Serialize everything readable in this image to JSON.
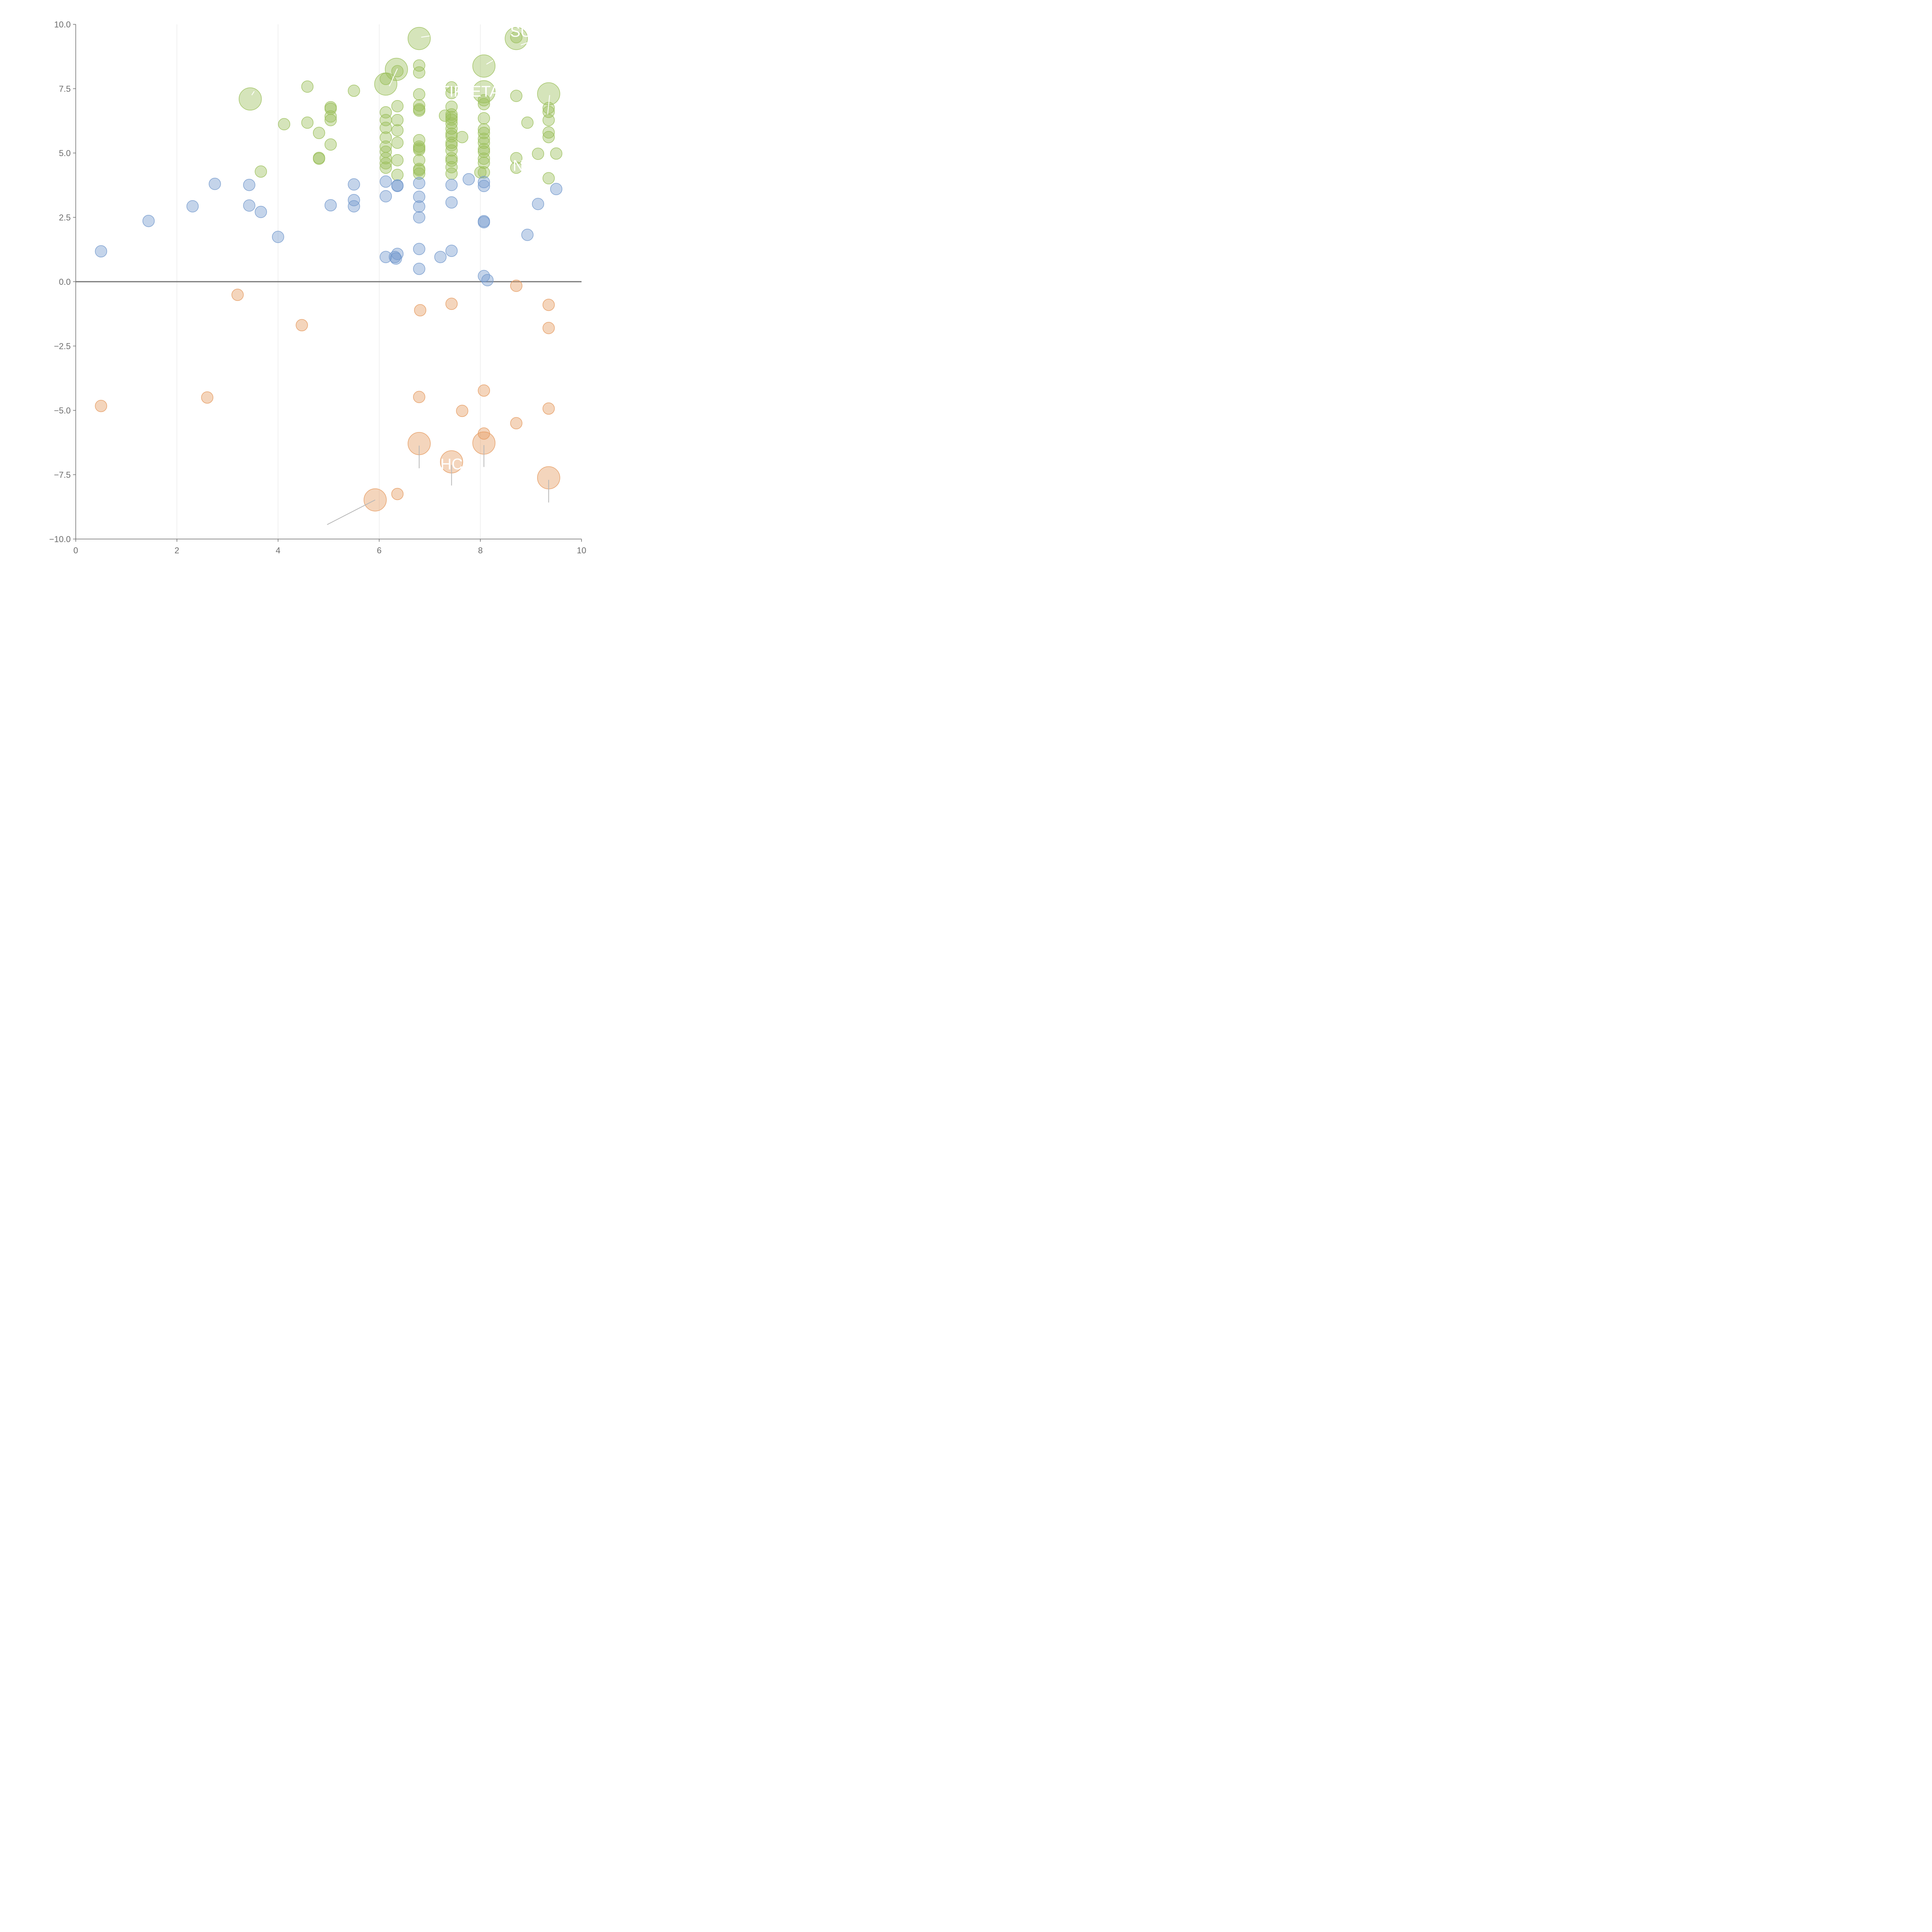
{
  "chart_data": {
    "type": "scatter",
    "title": "",
    "xlabel": "",
    "ylabel": "",
    "xlim": [
      0,
      10
    ],
    "ylim": [
      -10,
      10
    ],
    "x_ticks": [
      "0",
      "2",
      "4",
      "6",
      "8",
      "10"
    ],
    "y_ticks": [
      "−10.0",
      "−7.5",
      "−5.0",
      "−2.5",
      "0.0",
      "2.5",
      "5.0",
      "7.5",
      "10.0"
    ],
    "grid": "vertical",
    "zero_line": true,
    "colors": {
      "green": "#9bbf5b",
      "blue": "#7399cc",
      "orange": "#e59a5f",
      "axis": "#6e6e6e",
      "grid": "#e3e3e3"
    },
    "series": [
      {
        "color_key": "green",
        "points": [
          [
            3.45,
            7.1,
            3
          ],
          [
            3.66,
            4.28,
            1
          ],
          [
            4.12,
            6.12,
            1
          ],
          [
            4.58,
            7.58,
            1
          ],
          [
            4.58,
            6.18,
            1
          ],
          [
            4.81,
            5.78,
            1
          ],
          [
            4.81,
            4.81,
            1
          ],
          [
            4.81,
            4.78,
            1
          ],
          [
            5.04,
            6.78,
            1
          ],
          [
            5.04,
            6.72,
            1
          ],
          [
            5.04,
            6.42,
            1
          ],
          [
            5.04,
            6.28,
            1
          ],
          [
            5.04,
            5.33,
            1
          ],
          [
            5.5,
            7.42,
            1
          ],
          [
            6.13,
            7.68,
            3
          ],
          [
            6.13,
            7.88,
            1
          ],
          [
            6.13,
            6.58,
            1
          ],
          [
            6.13,
            6.28,
            1
          ],
          [
            6.13,
            5.98,
            1
          ],
          [
            6.13,
            5.6,
            1
          ],
          [
            6.13,
            5.25,
            1
          ],
          [
            6.13,
            5.05,
            1
          ],
          [
            6.13,
            4.8,
            1
          ],
          [
            6.13,
            4.6,
            1
          ],
          [
            6.13,
            4.43,
            1
          ],
          [
            6.34,
            8.25,
            3
          ],
          [
            6.36,
            8.18,
            1
          ],
          [
            6.36,
            6.82,
            1
          ],
          [
            6.36,
            6.28,
            1
          ],
          [
            6.36,
            5.88,
            1
          ],
          [
            6.36,
            5.4,
            1
          ],
          [
            6.36,
            4.72,
            1
          ],
          [
            6.36,
            4.15,
            1
          ],
          [
            6.79,
            9.45,
            3
          ],
          [
            6.79,
            8.4,
            1
          ],
          [
            6.79,
            8.13,
            1
          ],
          [
            6.79,
            7.28,
            1
          ],
          [
            6.79,
            6.85,
            1
          ],
          [
            6.79,
            6.7,
            1
          ],
          [
            6.79,
            6.65,
            1
          ],
          [
            6.79,
            5.5,
            1
          ],
          [
            6.79,
            5.25,
            1
          ],
          [
            6.79,
            5.18,
            1
          ],
          [
            6.79,
            5.12,
            1
          ],
          [
            6.79,
            4.72,
            1
          ],
          [
            6.79,
            4.38,
            1
          ],
          [
            6.79,
            4.33,
            1
          ],
          [
            6.79,
            4.2,
            1
          ],
          [
            7.3,
            6.45,
            1
          ],
          [
            7.43,
            7.55,
            1
          ],
          [
            7.43,
            7.33,
            1
          ],
          [
            7.43,
            6.8,
            1
          ],
          [
            7.43,
            6.5,
            1
          ],
          [
            7.43,
            6.4,
            1
          ],
          [
            7.43,
            6.3,
            1
          ],
          [
            7.43,
            6.15,
            1
          ],
          [
            7.43,
            5.95,
            1
          ],
          [
            7.43,
            5.75,
            1
          ],
          [
            7.43,
            5.65,
            1
          ],
          [
            7.43,
            5.4,
            1
          ],
          [
            7.43,
            5.3,
            1
          ],
          [
            7.43,
            5.1,
            1
          ],
          [
            7.43,
            4.8,
            1
          ],
          [
            7.43,
            4.7,
            1
          ],
          [
            7.43,
            4.45,
            1
          ],
          [
            7.43,
            4.2,
            1
          ],
          [
            7.64,
            5.62,
            1
          ],
          [
            8.0,
            4.25,
            1
          ],
          [
            8.07,
            8.38,
            3
          ],
          [
            8.07,
            7.38,
            3
          ],
          [
            8.07,
            7.05,
            1
          ],
          [
            8.07,
            6.9,
            1
          ],
          [
            8.07,
            6.35,
            1
          ],
          [
            8.07,
            5.92,
            1
          ],
          [
            8.07,
            5.78,
            1
          ],
          [
            8.07,
            5.55,
            1
          ],
          [
            8.07,
            5.4,
            1
          ],
          [
            8.07,
            5.15,
            1
          ],
          [
            8.07,
            5.05,
            1
          ],
          [
            8.07,
            4.78,
            1
          ],
          [
            8.07,
            4.62,
            1
          ],
          [
            8.07,
            4.25,
            1
          ],
          [
            8.71,
            9.45,
            3
          ],
          [
            8.71,
            9.5,
            1
          ],
          [
            8.71,
            7.22,
            1
          ],
          [
            8.71,
            4.8,
            1
          ],
          [
            8.71,
            4.43,
            1
          ],
          [
            8.93,
            6.18,
            1
          ],
          [
            9.14,
            4.97,
            1
          ],
          [
            9.35,
            7.3,
            3
          ],
          [
            9.35,
            6.75,
            1
          ],
          [
            9.35,
            6.6,
            1
          ],
          [
            9.35,
            6.28,
            1
          ],
          [
            9.35,
            5.8,
            1
          ],
          [
            9.35,
            5.62,
            1
          ],
          [
            9.35,
            4.02,
            1
          ],
          [
            9.5,
            4.98,
            1
          ]
        ]
      },
      {
        "color_key": "blue",
        "points": [
          [
            0.5,
            1.18,
            1
          ],
          [
            1.44,
            2.36,
            1
          ],
          [
            2.31,
            2.93,
            1
          ],
          [
            2.75,
            3.8,
            1
          ],
          [
            3.43,
            3.76,
            1
          ],
          [
            3.43,
            2.96,
            1
          ],
          [
            3.66,
            2.71,
            1
          ],
          [
            4.0,
            1.74,
            1
          ],
          [
            5.04,
            2.97,
            1
          ],
          [
            5.5,
            3.78,
            1
          ],
          [
            5.5,
            3.17,
            1
          ],
          [
            5.5,
            2.93,
            1
          ],
          [
            6.13,
            3.89,
            1
          ],
          [
            6.13,
            3.32,
            1
          ],
          [
            6.13,
            0.96,
            1
          ],
          [
            6.31,
            0.96,
            1
          ],
          [
            6.33,
            0.9,
            1
          ],
          [
            6.36,
            3.74,
            1
          ],
          [
            6.36,
            3.72,
            1
          ],
          [
            6.36,
            1.08,
            1
          ],
          [
            6.79,
            3.83,
            1
          ],
          [
            6.79,
            3.3,
            1
          ],
          [
            6.79,
            2.92,
            1
          ],
          [
            6.79,
            2.5,
            1
          ],
          [
            6.79,
            1.27,
            1
          ],
          [
            6.79,
            0.5,
            1
          ],
          [
            7.21,
            0.96,
            1
          ],
          [
            7.43,
            3.76,
            1
          ],
          [
            7.43,
            3.08,
            1
          ],
          [
            7.43,
            1.2,
            1
          ],
          [
            7.77,
            3.98,
            1
          ],
          [
            8.07,
            3.87,
            1
          ],
          [
            8.07,
            3.72,
            1
          ],
          [
            8.07,
            2.35,
            1
          ],
          [
            8.07,
            2.31,
            1
          ],
          [
            8.07,
            0.22,
            1
          ],
          [
            8.14,
            0.06,
            1
          ],
          [
            8.93,
            1.82,
            1
          ],
          [
            9.14,
            3.02,
            1
          ],
          [
            9.5,
            3.6,
            1
          ]
        ]
      },
      {
        "color_key": "orange",
        "points": [
          [
            0.5,
            -4.83,
            1
          ],
          [
            2.6,
            -4.5,
            1
          ],
          [
            3.2,
            -0.51,
            1
          ],
          [
            4.47,
            -1.69,
            1
          ],
          [
            5.92,
            -8.48,
            3
          ],
          [
            6.36,
            -8.25,
            1
          ],
          [
            6.79,
            -4.48,
            1
          ],
          [
            6.79,
            -6.29,
            3
          ],
          [
            6.81,
            -1.11,
            1
          ],
          [
            7.43,
            -0.86,
            1
          ],
          [
            7.43,
            -7.0,
            3
          ],
          [
            7.64,
            -5.02,
            1
          ],
          [
            8.07,
            -4.23,
            1
          ],
          [
            8.07,
            -5.9,
            1
          ],
          [
            8.07,
            -6.27,
            3
          ],
          [
            8.71,
            -0.16,
            1
          ],
          [
            8.71,
            -5.5,
            1
          ],
          [
            9.35,
            -0.9,
            1
          ],
          [
            9.35,
            -1.8,
            1
          ],
          [
            9.35,
            -4.93,
            1
          ],
          [
            9.35,
            -7.62,
            3
          ]
        ]
      }
    ],
    "annotations": [
      {
        "text": "SU",
        "x": 8.8,
        "y": 9.73,
        "color": "#ffffff"
      },
      {
        "text": "TIF",
        "x": 7.43,
        "y": 7.4,
        "color": "#ffffff"
      },
      {
        "text": "ETA",
        "x": 8.1,
        "y": 7.4,
        "color": "#ffffff"
      },
      {
        "text": "N",
        "x": 8.75,
        "y": 4.52,
        "color": "#ffffff"
      },
      {
        "text": "HC",
        "x": 7.43,
        "y": -7.08,
        "color": "#ffffff"
      }
    ],
    "leader_lines": [
      {
        "from": [
          6.83,
          9.5
        ],
        "to": [
          7.0,
          9.55
        ],
        "color": "#ffffff"
      },
      {
        "from": [
          8.8,
          9.2
        ],
        "to": [
          8.95,
          9.3
        ],
        "color": "#ffffff"
      },
      {
        "from": [
          8.12,
          8.45
        ],
        "to": [
          8.25,
          8.6
        ],
        "color": "#ffffff"
      },
      {
        "from": [
          6.36,
          8.28
        ],
        "to": [
          6.2,
          7.6
        ],
        "color": "#ffffff"
      },
      {
        "from": [
          3.48,
          7.25
        ],
        "to": [
          3.53,
          7.4
        ],
        "color": "#ffffff"
      },
      {
        "from": [
          9.37,
          7.25
        ],
        "to": [
          9.33,
          6.5
        ],
        "color": "#ffffff"
      },
      {
        "from": [
          5.92,
          -8.48
        ],
        "to": [
          4.97,
          -9.44
        ],
        "color": "#b8b8b8"
      },
      {
        "from": [
          6.79,
          -6.37
        ],
        "to": [
          6.79,
          -7.25
        ],
        "color": "#b8b8b8"
      },
      {
        "from": [
          8.07,
          -6.35
        ],
        "to": [
          8.07,
          -7.2
        ],
        "color": "#b8b8b8"
      },
      {
        "from": [
          7.43,
          -7.12
        ],
        "to": [
          7.43,
          -7.92
        ],
        "color": "#b8b8b8"
      },
      {
        "from": [
          9.35,
          -7.7
        ],
        "to": [
          9.35,
          -8.58
        ],
        "color": "#b8b8b8"
      }
    ]
  }
}
